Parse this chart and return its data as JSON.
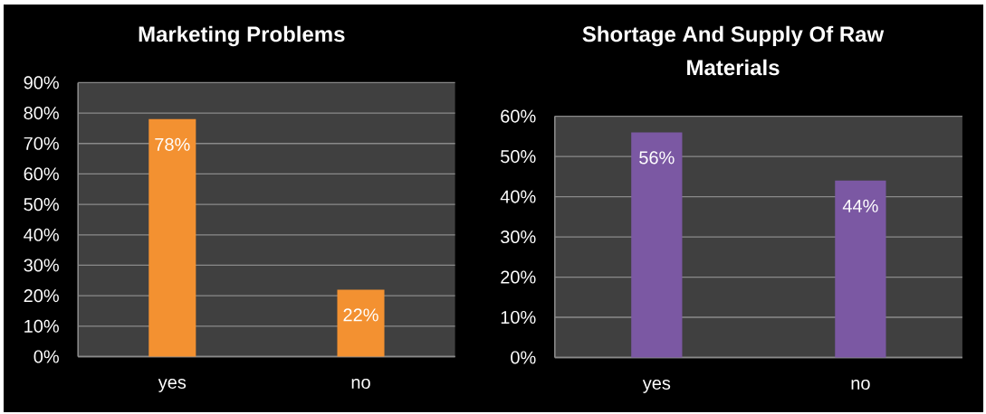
{
  "chart_data": [
    {
      "type": "bar",
      "title": "Marketing Problems",
      "categories": [
        "yes",
        "no"
      ],
      "values": [
        78,
        22
      ],
      "color": "#f39131",
      "value_labels": [
        "78%",
        "22%"
      ],
      "ylim": [
        0,
        90
      ],
      "yticks": [
        {
          "value": 0,
          "label": "0%"
        },
        {
          "value": 10,
          "label": "10%"
        },
        {
          "value": 20,
          "label": "20%"
        },
        {
          "value": 30,
          "label": "30%"
        },
        {
          "value": 40,
          "label": "40%"
        },
        {
          "value": 50,
          "label": "50%"
        },
        {
          "value": 60,
          "label": "60%"
        },
        {
          "value": 70,
          "label": "70%"
        },
        {
          "value": 80,
          "label": "80%"
        },
        {
          "value": 90,
          "label": "90%"
        }
      ],
      "grid": "y"
    },
    {
      "type": "bar",
      "title": "Shortage And Supply Of Raw Materials",
      "categories": [
        "yes",
        "no"
      ],
      "values": [
        56,
        44
      ],
      "color": "#7b58a3",
      "value_labels": [
        "56%",
        "44%"
      ],
      "ylim": [
        0,
        60
      ],
      "yticks": [
        {
          "value": 0,
          "label": "0%"
        },
        {
          "value": 10,
          "label": "10%"
        },
        {
          "value": 20,
          "label": "20%"
        },
        {
          "value": 30,
          "label": "30%"
        },
        {
          "value": 40,
          "label": "40%"
        },
        {
          "value": 50,
          "label": "50%"
        },
        {
          "value": 60,
          "label": "60%"
        }
      ],
      "grid": "y"
    }
  ]
}
